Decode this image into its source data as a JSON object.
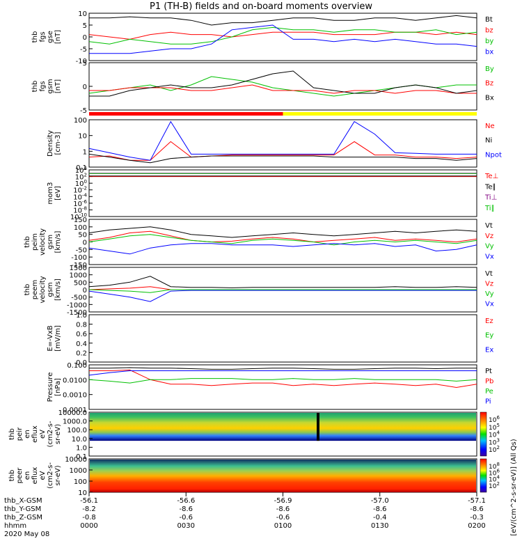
{
  "title": "P1  (TH-B) fields and on-board moments overview",
  "footer": {
    "rows": [
      {
        "label": "thb_X-GSM",
        "values": [
          "-56.1",
          "-56.6",
          "-56.9",
          "-57.0",
          "-57.1"
        ]
      },
      {
        "label": "thb_Y-GSM",
        "values": [
          "-8.2",
          "-8.6",
          "-8.6",
          "-8.6",
          "-8.6"
        ]
      },
      {
        "label": "thb_Z-GSM",
        "values": [
          "-0.8",
          "-0.6",
          "-0.6",
          "-0.4",
          "-0.3"
        ]
      },
      {
        "label": "hhmm",
        "values": [
          "0000",
          "0030",
          "0100",
          "0130",
          "0200"
        ]
      }
    ],
    "date": "2020 May 08"
  },
  "status_bar": {
    "colors": [
      "#ff0000",
      "#ffff00"
    ],
    "split_fraction": 0.5
  },
  "colorbar": {
    "label": "[eV/(cm^2-s-sr-eV)] (All Qs)"
  },
  "chart_data": [
    {
      "type": "line",
      "panel": "thb fgs gse [nT]",
      "ylabel_lines": [
        "thb",
        "fgs",
        "gse",
        "[nT]"
      ],
      "ylim": [
        -10,
        10
      ],
      "yticks": [
        "10",
        "5",
        "0",
        "-5",
        "-10"
      ],
      "series": [
        {
          "name": "Bt",
          "color": "#000000",
          "values": [
            8,
            8,
            8.5,
            8,
            8,
            7,
            5,
            6,
            6,
            7,
            8,
            8,
            7,
            7,
            8,
            8,
            7,
            8,
            9,
            8
          ]
        },
        {
          "name": "bz",
          "color": "#ff0000",
          "values": [
            1,
            0,
            -1,
            1,
            2,
            1,
            1,
            0,
            1,
            2,
            2,
            2,
            1,
            1,
            1,
            2,
            2,
            1,
            2,
            1
          ]
        },
        {
          "name": "by",
          "color": "#00c000",
          "values": [
            -2,
            -3,
            -1,
            -2,
            -3,
            -3,
            -2,
            0,
            3,
            4,
            3,
            3,
            2,
            3,
            3,
            2,
            2,
            3,
            1,
            2
          ]
        },
        {
          "name": "bx",
          "color": "#0000ff",
          "values": [
            -7,
            -7,
            -7,
            -6,
            -5,
            -5,
            -3,
            3,
            4,
            5,
            -1,
            -1,
            -2,
            -1,
            -2,
            -1,
            -2,
            -3,
            -3,
            -4
          ]
        }
      ]
    },
    {
      "type": "line",
      "panel": "thb fgs gsm [nT]",
      "ylabel_lines": [
        "thb",
        "fgs",
        "gsm",
        "[nT]"
      ],
      "ylim": [
        -7,
        10
      ],
      "yticks": [
        "5",
        "0",
        "-5"
      ],
      "series": [
        {
          "name": "By",
          "color": "#00c000",
          "values": [
            -1,
            0,
            1,
            2,
            0,
            2,
            5,
            4,
            3,
            1,
            0,
            -1,
            -2,
            -1,
            0,
            1,
            2,
            1,
            2,
            2
          ]
        },
        {
          "name": "Bz",
          "color": "#ff0000",
          "values": [
            0,
            0,
            1,
            1,
            1,
            0,
            0,
            1,
            2,
            0,
            0,
            0,
            -1,
            0,
            0,
            -1,
            0,
            0,
            -1,
            -1
          ]
        },
        {
          "name": "Bx",
          "color": "#000000",
          "values": [
            -2,
            -2,
            0,
            1,
            2,
            1,
            1,
            2,
            4,
            6,
            7,
            1,
            0,
            -1,
            -1,
            1,
            2,
            1,
            -1,
            0
          ]
        }
      ]
    },
    {
      "type": "line",
      "panel": "Density [cm-3]",
      "ylabel_lines": [
        "Density",
        "[cm-3]"
      ],
      "yscale": "log",
      "ylim": [
        0.1,
        200
      ],
      "yticks": [
        "100",
        "10",
        "1",
        "0.1"
      ],
      "series": [
        {
          "name": "Ne",
          "color": "#ff0000",
          "values": [
            0.5,
            0.6,
            0.3,
            0.3,
            6,
            0.5,
            0.6,
            0.7,
            0.7,
            0.7,
            0.7,
            0.7,
            0.7,
            6,
            0.7,
            0.7,
            0.5,
            0.5,
            0.4,
            0.5
          ]
        },
        {
          "name": "Ni",
          "color": "#000000",
          "values": [
            0.8,
            0.5,
            0.3,
            0.2,
            0.4,
            0.5,
            0.6,
            0.6,
            0.6,
            0.6,
            0.6,
            0.6,
            0.5,
            0.5,
            0.5,
            0.5,
            0.4,
            0.4,
            0.3,
            0.4
          ]
        },
        {
          "name": "Npot",
          "color": "#0000ff",
          "values": [
            2,
            1,
            0.5,
            0.3,
            150,
            0.8,
            0.8,
            0.8,
            0.8,
            0.8,
            0.8,
            0.8,
            0.8,
            150,
            20,
            1,
            0.9,
            0.8,
            0.8,
            0.8
          ]
        }
      ]
    },
    {
      "type": "line",
      "panel": "mom3 [eV]",
      "ylabel_lines": [
        "mom3",
        "[eV]"
      ],
      "yscale": "log",
      "ylim": [
        1e-10,
        10000
      ],
      "yticks": [
        "10^4",
        "10^2",
        "10^0",
        "10^-2",
        "10^-4",
        "10^-6",
        "10^-8",
        "10^-10"
      ],
      "series": [
        {
          "name": "Te⊥",
          "color": "#ff0000",
          "values": [
            100,
            100,
            100,
            100,
            100,
            100,
            100,
            100,
            100,
            100,
            100,
            100,
            100,
            100,
            100,
            100,
            100,
            100,
            100,
            100
          ]
        },
        {
          "name": "Te∥",
          "color": "#000000",
          "values": [
            150,
            150,
            150,
            150,
            150,
            150,
            150,
            150,
            150,
            150,
            150,
            150,
            150,
            150,
            150,
            150,
            150,
            150,
            150,
            150
          ]
        },
        {
          "name": "Ti⊥",
          "color": "#800080",
          "values": [
            1000,
            1000,
            1000,
            1000,
            1000,
            1000,
            1000,
            1000,
            1000,
            1000,
            1000,
            1000,
            1000,
            1000,
            1000,
            1000,
            1000,
            1000,
            1000,
            1000
          ]
        },
        {
          "name": "Ti∥",
          "color": "#00c000",
          "values": [
            800,
            800,
            800,
            800,
            800,
            800,
            800,
            800,
            800,
            800,
            800,
            800,
            800,
            800,
            800,
            800,
            800,
            800,
            800,
            800
          ]
        }
      ]
    },
    {
      "type": "line",
      "panel": "thb peim velocity gsm [km/s]",
      "ylabel_lines": [
        "thb",
        "peim",
        "velocity",
        "gsm",
        "[km/s]"
      ],
      "ylim": [
        -150,
        150
      ],
      "yticks": [
        "150",
        "100",
        "50",
        "0",
        "-50",
        "-100",
        "-150"
      ],
      "series": [
        {
          "name": "Vt",
          "color": "#000000",
          "values": [
            60,
            80,
            90,
            100,
            80,
            50,
            40,
            30,
            40,
            50,
            60,
            50,
            40,
            50,
            60,
            70,
            60,
            70,
            80,
            70
          ]
        },
        {
          "name": "Vz",
          "color": "#ff0000",
          "values": [
            10,
            30,
            60,
            70,
            40,
            10,
            0,
            5,
            20,
            30,
            20,
            0,
            10,
            20,
            30,
            10,
            20,
            10,
            0,
            20
          ]
        },
        {
          "name": "Vy",
          "color": "#00c000",
          "values": [
            0,
            20,
            40,
            50,
            30,
            10,
            0,
            -10,
            10,
            20,
            10,
            0,
            -20,
            0,
            10,
            0,
            10,
            0,
            -10,
            10
          ]
        },
        {
          "name": "Vx",
          "color": "#0000ff",
          "values": [
            -40,
            -60,
            -80,
            -40,
            -20,
            -10,
            -10,
            -20,
            -20,
            -20,
            -30,
            -20,
            -10,
            -20,
            -10,
            -30,
            -20,
            -60,
            -50,
            -20
          ]
        }
      ]
    },
    {
      "type": "line",
      "panel": "thb peem velocity gsm [km/s]",
      "ylabel_lines": [
        "thb",
        "peem",
        "velocity",
        "gsm",
        "[km/s]"
      ],
      "ylim": [
        -1500,
        1500
      ],
      "yticks": [
        "1500",
        "1000",
        "500",
        "0",
        "-500",
        "-1000",
        "-1500"
      ],
      "series": [
        {
          "name": "Vt",
          "color": "#000000",
          "values": [
            200,
            300,
            500,
            900,
            200,
            150,
            150,
            120,
            150,
            150,
            150,
            150,
            150,
            150,
            150,
            200,
            150,
            150,
            200,
            150
          ]
        },
        {
          "name": "Vz",
          "color": "#ff0000",
          "values": [
            0,
            50,
            100,
            200,
            0,
            0,
            0,
            0,
            0,
            0,
            0,
            0,
            0,
            0,
            0,
            0,
            0,
            0,
            0,
            0
          ]
        },
        {
          "name": "Vy",
          "color": "#00c000",
          "values": [
            0,
            -50,
            -100,
            -200,
            0,
            0,
            0,
            0,
            0,
            0,
            0,
            0,
            0,
            0,
            0,
            0,
            0,
            0,
            0,
            0
          ]
        },
        {
          "name": "Vx",
          "color": "#0000ff",
          "values": [
            -100,
            -300,
            -500,
            -800,
            -100,
            -50,
            -50,
            -50,
            -50,
            -50,
            -50,
            -50,
            -50,
            -50,
            -50,
            -50,
            -50,
            -50,
            -50,
            -50
          ]
        }
      ]
    },
    {
      "type": "line",
      "panel": "E=-VxB [mV/m]",
      "ylabel_lines": [
        "E=-VxB",
        "[mV/m]"
      ],
      "ylim": [
        0,
        1
      ],
      "yticks": [
        "1.0",
        "0.8",
        "0.6",
        "0.4",
        "0.2",
        "0.0"
      ],
      "series": [
        {
          "name": "Ez",
          "color": "#ff0000",
          "values": []
        },
        {
          "name": "Ey",
          "color": "#00c000",
          "values": []
        },
        {
          "name": "Ex",
          "color": "#0000ff",
          "values": []
        }
      ]
    },
    {
      "type": "line",
      "panel": "Pressure [nPa]",
      "ylabel_lines": [
        "Pressure",
        "[nPa]"
      ],
      "yscale": "log",
      "ylim": [
        0.0001,
        0.1
      ],
      "yticks": [
        "0.100",
        "0.0100",
        "0.0010",
        "0.0001"
      ],
      "series": [
        {
          "name": "Pt",
          "color": "#000000",
          "values": [
            0.06,
            0.06,
            0.065,
            0.06,
            0.06,
            0.055,
            0.05,
            0.05,
            0.055,
            0.06,
            0.06,
            0.055,
            0.05,
            0.05,
            0.055,
            0.06,
            0.06,
            0.055,
            0.06,
            0.06
          ]
        },
        {
          "name": "Pb",
          "color": "#ff0000",
          "values": [
            0.04,
            0.04,
            0.045,
            0.01,
            0.005,
            0.005,
            0.004,
            0.005,
            0.006,
            0.006,
            0.004,
            0.005,
            0.004,
            0.005,
            0.006,
            0.005,
            0.004,
            0.005,
            0.003,
            0.005
          ]
        },
        {
          "name": "Pe",
          "color": "#00c000",
          "values": [
            0.01,
            0.008,
            0.006,
            0.01,
            0.01,
            0.012,
            0.012,
            0.012,
            0.01,
            0.01,
            0.012,
            0.01,
            0.01,
            0.012,
            0.01,
            0.01,
            0.01,
            0.01,
            0.008,
            0.01
          ]
        },
        {
          "name": "Pi",
          "color": "#0000ff",
          "values": [
            0.02,
            0.03,
            0.04,
            0.04,
            0.04,
            0.04,
            0.04,
            0.04,
            0.04,
            0.04,
            0.04,
            0.04,
            0.04,
            0.04,
            0.04,
            0.04,
            0.04,
            0.04,
            0.04,
            0.04
          ]
        }
      ]
    },
    {
      "type": "heatmap",
      "panel": "thb peir en eflux eV/(cm2-s-sr-eV)",
      "ylabel_lines": [
        "thb",
        "peir",
        "en",
        "eflux",
        "eV",
        "(cm2-s-",
        "sr-eV)"
      ],
      "yscale": "log",
      "ylim": [
        0.1,
        30000
      ],
      "yticks": [
        "10000.0",
        "1000.0",
        "100.0",
        "10.0",
        "1.0",
        "0.1"
      ],
      "colorbar_ticks": [
        "10^6",
        "10^5",
        "10^4",
        "10^3",
        "10^2"
      ]
    },
    {
      "type": "heatmap",
      "panel": "thb peer en eflux eV/(cm2-s-sr-eV)",
      "ylabel_lines": [
        "thb",
        "peer",
        "en",
        "eflux",
        "eV",
        "(cm2-s-",
        "sr-eV)"
      ],
      "yscale": "log",
      "ylim": [
        7,
        20000
      ],
      "yticks": [
        "10000",
        "1000",
        "100",
        "10"
      ],
      "colorbar_ticks": [
        "10^8",
        "10^6",
        "10^4",
        "10^2"
      ]
    }
  ]
}
